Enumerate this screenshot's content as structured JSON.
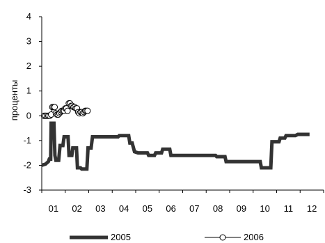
{
  "chart_data": {
    "type": "line",
    "title": "",
    "xlabel": "",
    "ylabel": "проценты",
    "ylim": [
      -3,
      4
    ],
    "xlim": [
      0.5,
      12.5
    ],
    "yticks": [
      4,
      3,
      2,
      1,
      0,
      -1,
      -2,
      -3
    ],
    "xticks": [
      "01",
      "02",
      "03",
      "04",
      "05",
      "06",
      "07",
      "08",
      "09",
      "10",
      "11",
      "12"
    ],
    "grid": false,
    "legend_position": "bottom",
    "series": [
      {
        "name": "2005",
        "color": "#333333",
        "style": "thick-step-line",
        "points": [
          [
            0.5,
            -2.0
          ],
          [
            0.66,
            -1.95
          ],
          [
            0.78,
            -1.85
          ],
          [
            0.82,
            -1.75
          ],
          [
            0.88,
            -1.75
          ],
          [
            0.9,
            -0.3
          ],
          [
            1.02,
            -0.3
          ],
          [
            1.06,
            -1.6
          ],
          [
            1.1,
            -1.8
          ],
          [
            1.22,
            -1.8
          ],
          [
            1.28,
            -1.2
          ],
          [
            1.4,
            -1.2
          ],
          [
            1.45,
            -0.85
          ],
          [
            1.62,
            -0.85
          ],
          [
            1.66,
            -1.6
          ],
          [
            1.78,
            -1.6
          ],
          [
            1.82,
            -1.3
          ],
          [
            1.98,
            -1.3
          ],
          [
            2.02,
            -2.1
          ],
          [
            2.15,
            -2.1
          ],
          [
            2.2,
            -2.15
          ],
          [
            2.42,
            -2.15
          ],
          [
            2.47,
            -1.3
          ],
          [
            2.6,
            -1.3
          ],
          [
            2.66,
            -0.85
          ],
          [
            3.75,
            -0.85
          ],
          [
            3.8,
            -0.8
          ],
          [
            4.2,
            -0.8
          ],
          [
            4.25,
            -1.1
          ],
          [
            4.35,
            -1.1
          ],
          [
            4.45,
            -1.45
          ],
          [
            4.6,
            -1.5
          ],
          [
            5.0,
            -1.5
          ],
          [
            5.05,
            -1.6
          ],
          [
            5.3,
            -1.6
          ],
          [
            5.35,
            -1.5
          ],
          [
            5.6,
            -1.5
          ],
          [
            5.65,
            -1.35
          ],
          [
            5.95,
            -1.35
          ],
          [
            6.0,
            -1.6
          ],
          [
            7.9,
            -1.6
          ],
          [
            7.95,
            -1.65
          ],
          [
            8.3,
            -1.65
          ],
          [
            8.35,
            -1.85
          ],
          [
            9.8,
            -1.85
          ],
          [
            9.85,
            -2.1
          ],
          [
            10.25,
            -2.1
          ],
          [
            10.3,
            -1.05
          ],
          [
            10.6,
            -1.05
          ],
          [
            10.65,
            -0.9
          ],
          [
            10.85,
            -0.9
          ],
          [
            10.9,
            -0.8
          ],
          [
            11.3,
            -0.8
          ],
          [
            11.4,
            -0.75
          ],
          [
            11.9,
            -0.75
          ]
        ]
      },
      {
        "name": "2006",
        "color": "#000000",
        "style": "thin-line-open-circles",
        "points": [
          [
            0.6,
            0.0
          ],
          [
            0.66,
            0.0
          ],
          [
            0.72,
            0.0
          ],
          [
            0.78,
            0.0
          ],
          [
            0.84,
            0.0
          ],
          [
            0.9,
            0.05
          ],
          [
            0.95,
            0.35
          ],
          [
            1.0,
            0.35
          ],
          [
            1.05,
            0.35
          ],
          [
            1.1,
            0.1
          ],
          [
            1.15,
            0.05
          ],
          [
            1.2,
            0.05
          ],
          [
            1.25,
            0.1
          ],
          [
            1.3,
            0.15
          ],
          [
            1.35,
            0.2
          ],
          [
            1.4,
            0.2
          ],
          [
            1.45,
            0.2
          ],
          [
            1.5,
            0.3
          ],
          [
            1.55,
            0.3
          ],
          [
            1.6,
            0.2
          ],
          [
            1.65,
            0.5
          ],
          [
            1.7,
            0.5
          ],
          [
            1.75,
            0.4
          ],
          [
            1.8,
            0.4
          ],
          [
            1.85,
            0.35
          ],
          [
            1.9,
            0.35
          ],
          [
            1.95,
            0.3
          ],
          [
            2.0,
            0.3
          ],
          [
            2.05,
            0.15
          ],
          [
            2.1,
            0.1
          ],
          [
            2.15,
            0.15
          ],
          [
            2.2,
            0.15
          ],
          [
            2.25,
            0.1
          ],
          [
            2.3,
            0.15
          ],
          [
            2.35,
            0.2
          ],
          [
            2.4,
            0.2
          ],
          [
            2.45,
            0.2
          ]
        ]
      }
    ]
  }
}
